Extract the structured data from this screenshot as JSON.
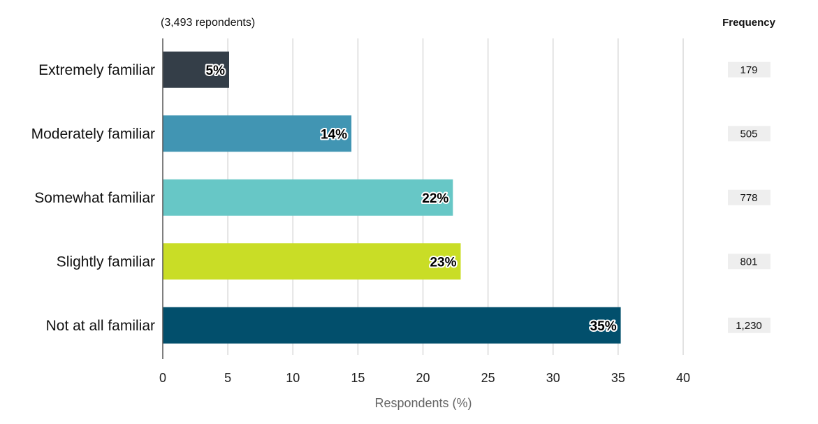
{
  "note": "(3,493 repondents)",
  "frequency_header": "Frequency",
  "colors": {
    "grid": "#d9d9d9",
    "axis": "#555555",
    "freq_box": "#eeeeee"
  },
  "chart_data": {
    "type": "bar",
    "orientation": "horizontal",
    "xlabel": "Respondents (%)",
    "xlim": [
      0,
      40
    ],
    "xticks": [
      0,
      5,
      10,
      15,
      20,
      25,
      30,
      35,
      40
    ],
    "grid": true,
    "categories": [
      "Extremely familiar",
      "Moderately familiar",
      "Somewhat familiar",
      "Slightly familiar",
      "Not at all familiar"
    ],
    "values": [
      5.1,
      14.5,
      22.3,
      22.9,
      35.2
    ],
    "data_labels": [
      "5%",
      "14%",
      "22%",
      "23%",
      "35%"
    ],
    "frequencies": [
      "179",
      "505",
      "778",
      "801",
      "1,230"
    ],
    "bar_colors": [
      "#343e48",
      "#4195b3",
      "#67c7c6",
      "#c9dd26",
      "#024f6c"
    ]
  }
}
